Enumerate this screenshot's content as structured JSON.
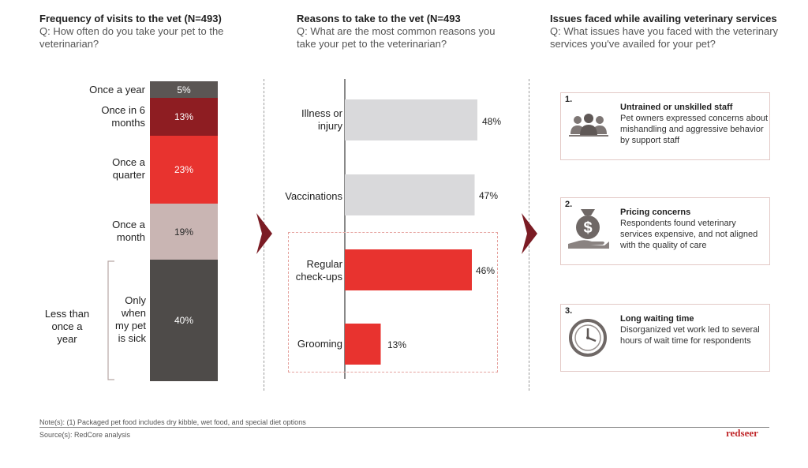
{
  "panels": {
    "frequency": {
      "title": "Frequency of visits to the vet (N=493)",
      "question": "Q: How often do you take your pet to the veterinarian?"
    },
    "reasons": {
      "title": "Reasons to take to the vet (N=493",
      "question": "Q: What are the most common reasons you take your pet to the veterinarian?"
    },
    "issues": {
      "title": "Issues faced while availing veterinary services",
      "question": "Q: What issues have you faced with the veterinary services you've availed for your pet?"
    }
  },
  "chart_data": [
    {
      "type": "bar",
      "stacked": true,
      "title": "Frequency of visits to the vet (N=493)",
      "categories": [
        "Once a year",
        "Once in 6 months",
        "Once a quarter",
        "Once a month",
        "Only when my pet is sick"
      ],
      "values": [
        5,
        13,
        23,
        19,
        40
      ],
      "value_labels": [
        "5%",
        "13%",
        "23%",
        "19%",
        "40%"
      ],
      "colors": [
        "#5b5654",
        "#8e1d22",
        "#e8332f",
        "#c9b5b3",
        "#4e4b49"
      ],
      "bracket_label": "Less than once a year",
      "unit": "%"
    },
    {
      "type": "bar",
      "orientation": "horizontal",
      "title": "Reasons to take to the vet (N=493",
      "categories": [
        "Illness or injury",
        "Vaccinations",
        "Regular check-ups",
        "Grooming"
      ],
      "values": [
        48,
        47,
        46,
        13
      ],
      "value_labels": [
        "48%",
        "47%",
        "46%",
        "13%"
      ],
      "colors": [
        "#d9d9db",
        "#d9d9db",
        "#e8332f",
        "#e8332f"
      ],
      "xlim": [
        0,
        50
      ],
      "unit": "%"
    }
  ],
  "issues": [
    {
      "number": "1.",
      "title": "Untrained or unskilled staff",
      "body": "Pet owners expressed concerns about mishandling and aggressive behavior by support staff",
      "icon": "people-icon"
    },
    {
      "number": "2.",
      "title": "Pricing concerns",
      "body": "Respondents found veterinary services expensive, and not aligned with the quality of care",
      "icon": "money-bag-icon"
    },
    {
      "number": "3.",
      "title": "Long waiting time",
      "body": "Disorganized vet work led to several hours of wait time for respondents",
      "icon": "clock-icon"
    }
  ],
  "footer": {
    "note": "Note(s): (1) Packaged pet food includes dry kibble, wet food, and special diet options",
    "source": "Source(s): RedCore analysis",
    "brand": "redseer"
  },
  "colors": {
    "accent": "#e8332f",
    "dark_red": "#8e1d22",
    "chevron": "#7b1c24",
    "grey_bar": "#d9d9db"
  }
}
